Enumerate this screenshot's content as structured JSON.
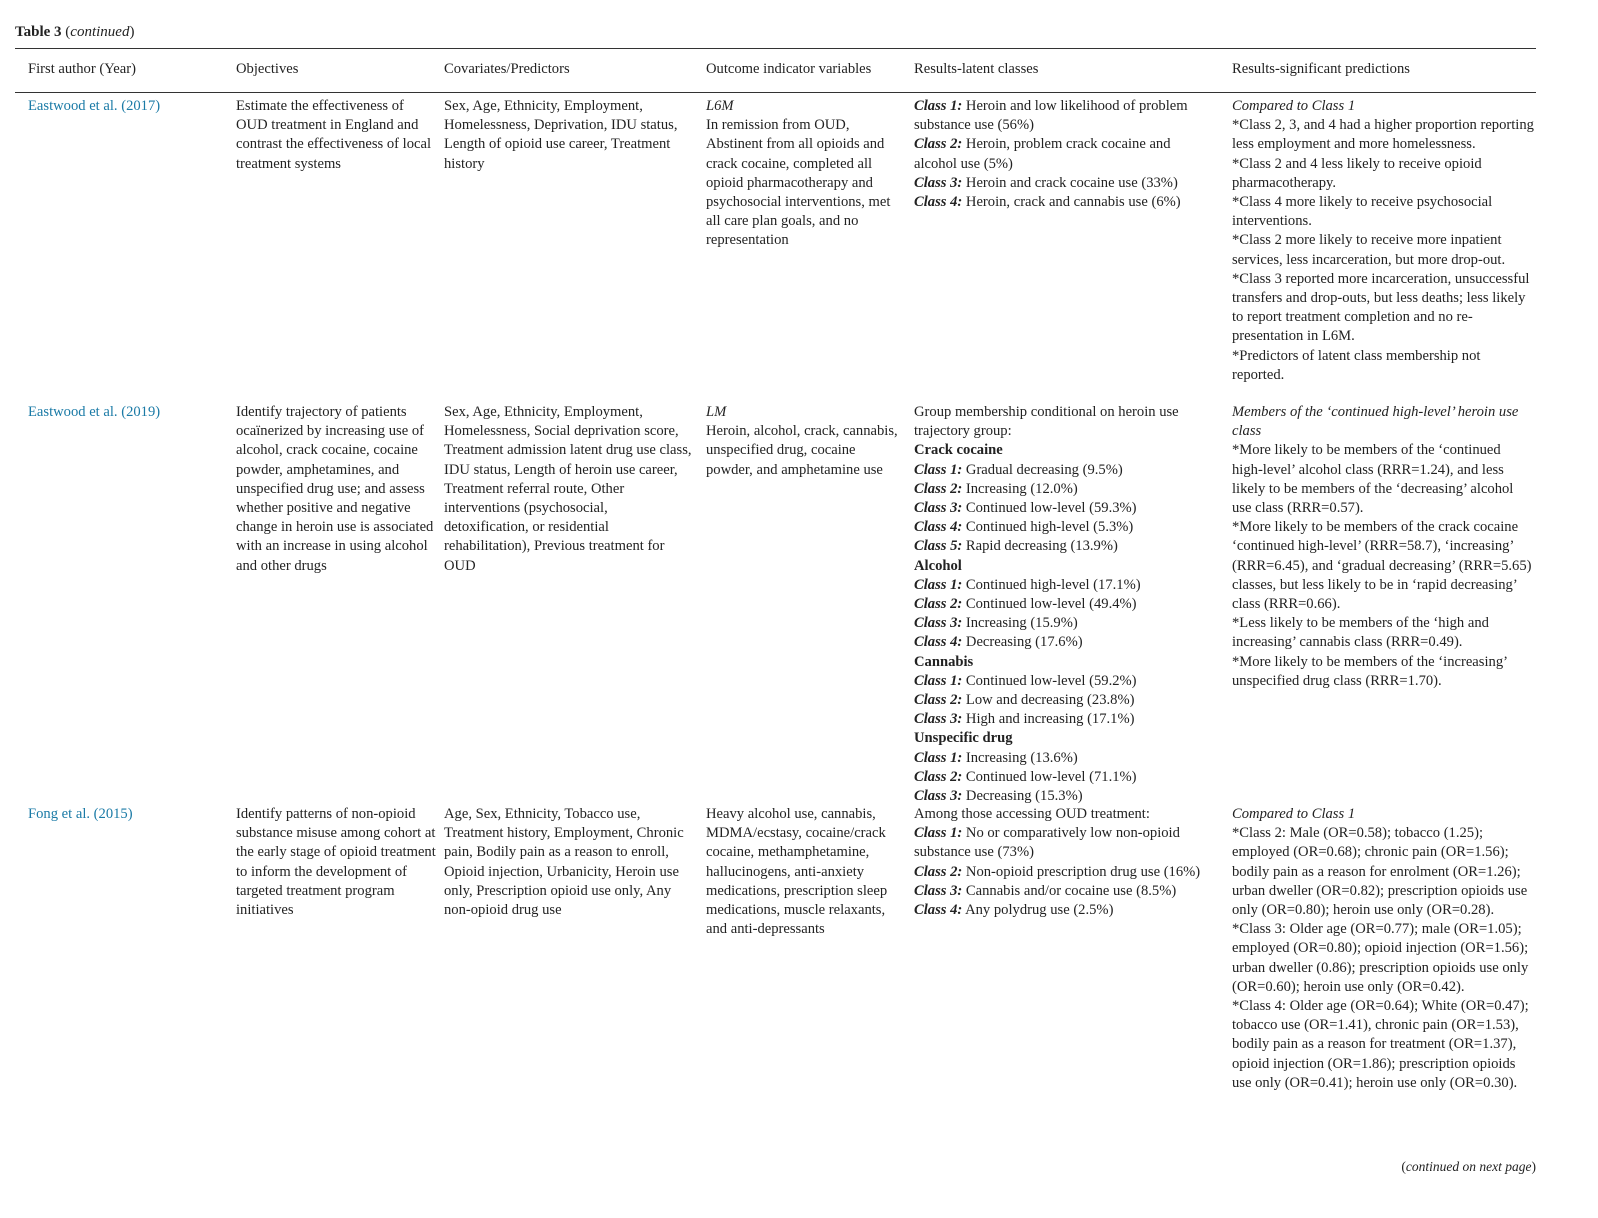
{
  "table_title": {
    "label": "Table 3",
    "note": "continued"
  },
  "columns": [
    "First author (Year)",
    "Objectives",
    "Covariates/Predictors",
    "Outcome indicator variables",
    "Results-latent classes",
    "Results-significant predictions"
  ],
  "rows": [
    {
      "author": "Eastwood et al. (2017)",
      "objectives": "Estimate the effectiveness of OUD treatment in England and contrast the effectiveness of local treatment systems",
      "covariates": "Sex, Age, Ethnicity, Employment, Homelessness, Deprivation, IDU status, Length of opioid use career, Treatment history",
      "outcome": {
        "label": "L6M",
        "text": "In remission from OUD, Abstinent from all opioids and crack cocaine, completed all opioid pharmacotherapy and psychosocial interventions, met all care plan goals, and no representation"
      },
      "latent": [
        {
          "type": "class",
          "label": "Class 1:",
          "text": "Heroin and low likelihood of problem substance use (56%)"
        },
        {
          "type": "class",
          "label": "Class 2:",
          "text": "Heroin, problem crack cocaine and alcohol use (5%)"
        },
        {
          "type": "class",
          "label": "Class 3:",
          "text": "Heroin and crack cocaine use (33%)"
        },
        {
          "type": "class",
          "label": "Class 4:",
          "text": "Heroin, crack and cannabis use (6%)"
        }
      ],
      "predictions": {
        "intro": "Compared to Class 1",
        "items": [
          "*Class 2, 3, and 4 had a higher proportion reporting less employment and more homelessness.",
          "*Class 2 and 4 less likely to receive opioid pharmacotherapy.",
          "*Class 4 more likely to receive psychosocial interventions.",
          "*Class 2 more likely to receive more inpatient services, less incarceration, but more drop-out.",
          "*Class 3 reported more incarceration, unsuccessful transfers and drop-outs, but less deaths; less likely to report treatment completion and no re-presentation in L6M.",
          "*Predictors of latent class membership not reported."
        ]
      }
    },
    {
      "author": "Eastwood et al. (2019)",
      "objectives": "Identify trajectory of patients ocaïnerized by increasing use of alcohol, crack cocaine, cocaine powder, amphetamines, and unspecified drug use; and assess whether positive and negative change in heroin use is associated with an increase in using alcohol and other drugs",
      "covariates": "Sex, Age, Ethnicity, Employment, Homelessness, Social deprivation score, Treatment admission latent drug use class, IDU status, Length of heroin use career, Treatment referral route, Other interventions (psychosocial, detoxification, or residential rehabilitation), Previous treatment for OUD",
      "outcome": {
        "label": "LM",
        "text": "Heroin, alcohol, crack, cannabis, unspecified drug, cocaine powder, and amphetamine use"
      },
      "latent": [
        {
          "type": "intro",
          "text": "Group membership conditional on heroin use trajectory group:"
        },
        {
          "type": "heading",
          "text": "Crack cocaine"
        },
        {
          "type": "class",
          "label": "Class 1:",
          "text": "Gradual decreasing (9.5%)"
        },
        {
          "type": "class",
          "label": "Class 2:",
          "text": "Increasing (12.0%)"
        },
        {
          "type": "class",
          "label": "Class 3:",
          "text": "Continued low-level (59.3%)"
        },
        {
          "type": "class",
          "label": "Class 4:",
          "text": "Continued high-level (5.3%)"
        },
        {
          "type": "class",
          "label": "Class 5:",
          "text": "Rapid decreasing (13.9%)"
        },
        {
          "type": "heading",
          "text": "Alcohol"
        },
        {
          "type": "class",
          "label": "Class 1:",
          "text": "Continued high-level (17.1%)"
        },
        {
          "type": "class",
          "label": "Class 2:",
          "text": "Continued low-level (49.4%)"
        },
        {
          "type": "class",
          "label": "Class 3:",
          "text": "Increasing (15.9%)"
        },
        {
          "type": "class",
          "label": "Class 4:",
          "text": "Decreasing (17.6%)"
        },
        {
          "type": "heading",
          "text": "Cannabis"
        },
        {
          "type": "class",
          "label": "Class 1:",
          "text": "Continued low-level (59.2%)"
        },
        {
          "type": "class",
          "label": "Class 2:",
          "text": "Low and decreasing (23.8%)"
        },
        {
          "type": "class",
          "label": "Class 3:",
          "text": "High and increasing (17.1%)"
        },
        {
          "type": "heading",
          "text": "Unspecific drug"
        },
        {
          "type": "class",
          "label": "Class 1:",
          "text": "Increasing (13.6%)"
        },
        {
          "type": "class",
          "label": "Class 2:",
          "text": "Continued low-level (71.1%)"
        },
        {
          "type": "class",
          "label": "Class 3:",
          "text": "Decreasing (15.3%)"
        }
      ],
      "predictions": {
        "intro": "Members of the ‘continued high-level’ heroin use class",
        "items": [
          "*More likely to be members of the ‘continued high-level’ alcohol class (RRR=1.24), and less likely to be members of the ‘decreasing’ alcohol use class (RRR=0.57).",
          "*More likely to be members of the crack cocaine ‘continued high-level’ (RRR=58.7), ‘increasing’ (RRR=6.45), and ‘gradual decreasing’ (RRR=5.65) classes, but less likely to be in ‘rapid decreasing’ class (RRR=0.66).",
          "*Less likely to be members of the ‘high and increasing’ cannabis class (RRR=0.49).",
          "*More likely to be members of the ‘increasing’ unspecified drug class (RRR=1.70)."
        ]
      }
    },
    {
      "author": "Fong et al. (2015)",
      "objectives": "Identify patterns of non-opioid substance misuse among cohort at the early stage of opioid treatment to inform the development of targeted treatment program initiatives",
      "covariates": "Age, Sex, Ethnicity, Tobacco use, Treatment history, Employment, Chronic pain, Bodily pain as a reason to enroll, Opioid injection, Urbanicity, Heroin use only, Prescription opioid use only, Any non-opioid drug use",
      "outcome": {
        "label": "",
        "text": "Heavy alcohol use, cannabis, MDMA/ecstasy, cocaine/crack cocaine, methamphetamine, hallucinogens, anti-anxiety medications, prescription sleep medications, muscle relaxants, and anti-depressants"
      },
      "latent": [
        {
          "type": "intro",
          "text": "Among those accessing OUD treatment:"
        },
        {
          "type": "class",
          "label": "Class 1:",
          "text": "No or comparatively low non-opioid substance use (73%)"
        },
        {
          "type": "class",
          "label": "Class 2:",
          "text": "Non-opioid prescription drug use (16%)"
        },
        {
          "type": "class",
          "label": "Class 3:",
          "text": "Cannabis and/or cocaine use (8.5%)"
        },
        {
          "type": "class",
          "label": "Class 4:",
          "text": "Any polydrug use (2.5%)"
        }
      ],
      "predictions": {
        "intro": "Compared to Class 1",
        "items": [
          "*Class 2: Male (OR=0.58); tobacco (1.25); employed (OR=0.68); chronic pain (OR=1.56); bodily pain as a reason for enrolment (OR=1.26); urban dweller (OR=0.82); prescription opioids use only (OR=0.80); heroin use only (OR=0.28).",
          "*Class 3: Older age (OR=0.77); male (OR=1.05); employed (OR=0.80); opioid injection (OR=1.56); urban dweller (0.86); prescription opioids use only (OR=0.60); heroin use only (OR=0.42).",
          "*Class 4: Older age (OR=0.64); White (OR=0.47); tobacco use (OR=1.41), chronic pain (OR=1.53), bodily pain as a reason for treatment (OR=1.37), opioid injection (OR=1.86); prescription opioids use only (OR=0.41); heroin use only (OR=0.30)."
        ]
      }
    }
  ],
  "footer": "continued on next page"
}
